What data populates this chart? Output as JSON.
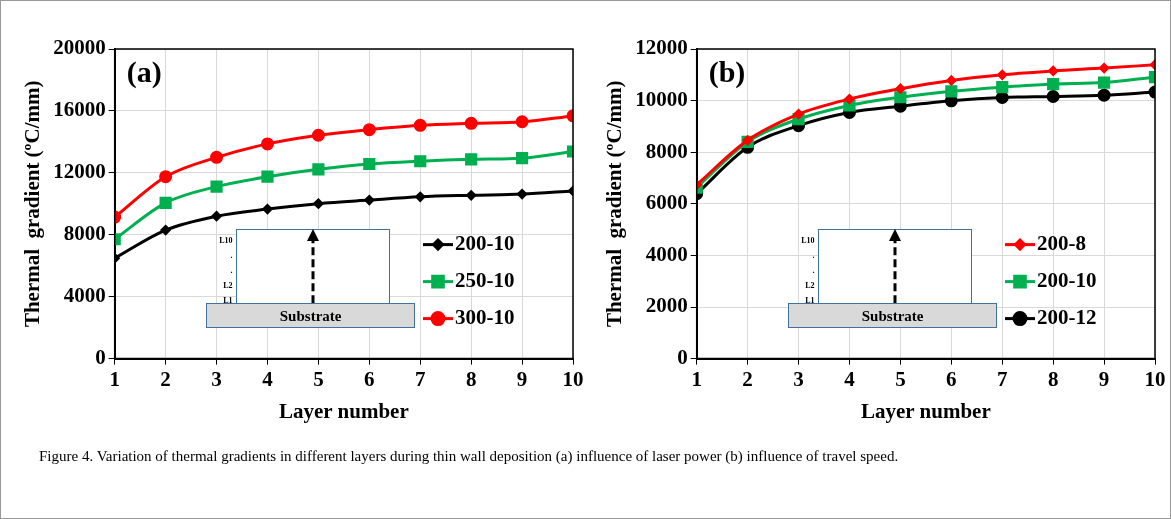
{
  "chart_data": [
    {
      "type": "line",
      "title": "(a)",
      "xlabel": "Layer number",
      "ylabel": "Thermal  gradient (ºC/mm)",
      "x": [
        1,
        2,
        3,
        4,
        5,
        6,
        7,
        8,
        9,
        10
      ],
      "xlim": [
        1,
        10
      ],
      "xticks": [
        1,
        2,
        3,
        4,
        5,
        6,
        7,
        8,
        9,
        10
      ],
      "ylim": [
        0,
        20000
      ],
      "yticks": [
        0,
        4000,
        8000,
        12000,
        16000,
        20000
      ],
      "grid": true,
      "legend": "bottom right",
      "annotations": [
        "L10",
        ".",
        ".",
        "L2",
        "L1",
        "Substrate"
      ],
      "series": [
        {
          "name": "200-10",
          "color": "#000000",
          "marker": "diamond",
          "values": [
            6490,
            8300,
            9200,
            9660,
            10010,
            10240,
            10450,
            10550,
            10630,
            10830
          ]
        },
        {
          "name": "250-10",
          "color": "#00b050",
          "marker": "square",
          "values": [
            7710,
            10060,
            11110,
            11750,
            12230,
            12570,
            12750,
            12870,
            12950,
            13380
          ]
        },
        {
          "name": "300-10",
          "color": "#ff0000",
          "marker": "circle",
          "values": [
            9140,
            11750,
            13000,
            13870,
            14430,
            14790,
            15070,
            15200,
            15300,
            15680
          ]
        }
      ]
    },
    {
      "type": "line",
      "title": "(b)",
      "xlabel": "Layer number",
      "ylabel": "Thermal  gradient (ºC/mm)",
      "x": [
        1,
        2,
        3,
        4,
        5,
        6,
        7,
        8,
        9,
        10
      ],
      "xlim": [
        1,
        10
      ],
      "xticks": [
        1,
        2,
        3,
        4,
        5,
        6,
        7,
        8,
        9,
        10
      ],
      "ylim": [
        0,
        12000
      ],
      "yticks": [
        0,
        2000,
        4000,
        6000,
        8000,
        10000,
        12000
      ],
      "grid": true,
      "legend": "bottom right",
      "annotations": [
        "L10",
        ".",
        ".",
        "L2",
        "L1",
        "Substrate"
      ],
      "series": [
        {
          "name": "200-8",
          "color": "#ff0000",
          "marker": "diamond",
          "values": [
            6740,
            8460,
            9480,
            10060,
            10460,
            10780,
            11000,
            11150,
            11260,
            11390
          ]
        },
        {
          "name": "200-10",
          "color": "#00b050",
          "marker": "square",
          "values": [
            6630,
            8400,
            9280,
            9810,
            10130,
            10360,
            10520,
            10640,
            10700,
            10910
          ]
        },
        {
          "name": "200-12",
          "color": "#000000",
          "marker": "circle",
          "values": [
            6390,
            8190,
            9030,
            9540,
            9780,
            9990,
            10120,
            10160,
            10210,
            10330
          ]
        }
      ]
    },
    {
      "type": "other",
      "annotations": [
        "Figure 4. Variation of thermal gradients in different layers during thin wall deposition (a) influence of laser power (b) influence of travel speed."
      ]
    }
  ]
}
